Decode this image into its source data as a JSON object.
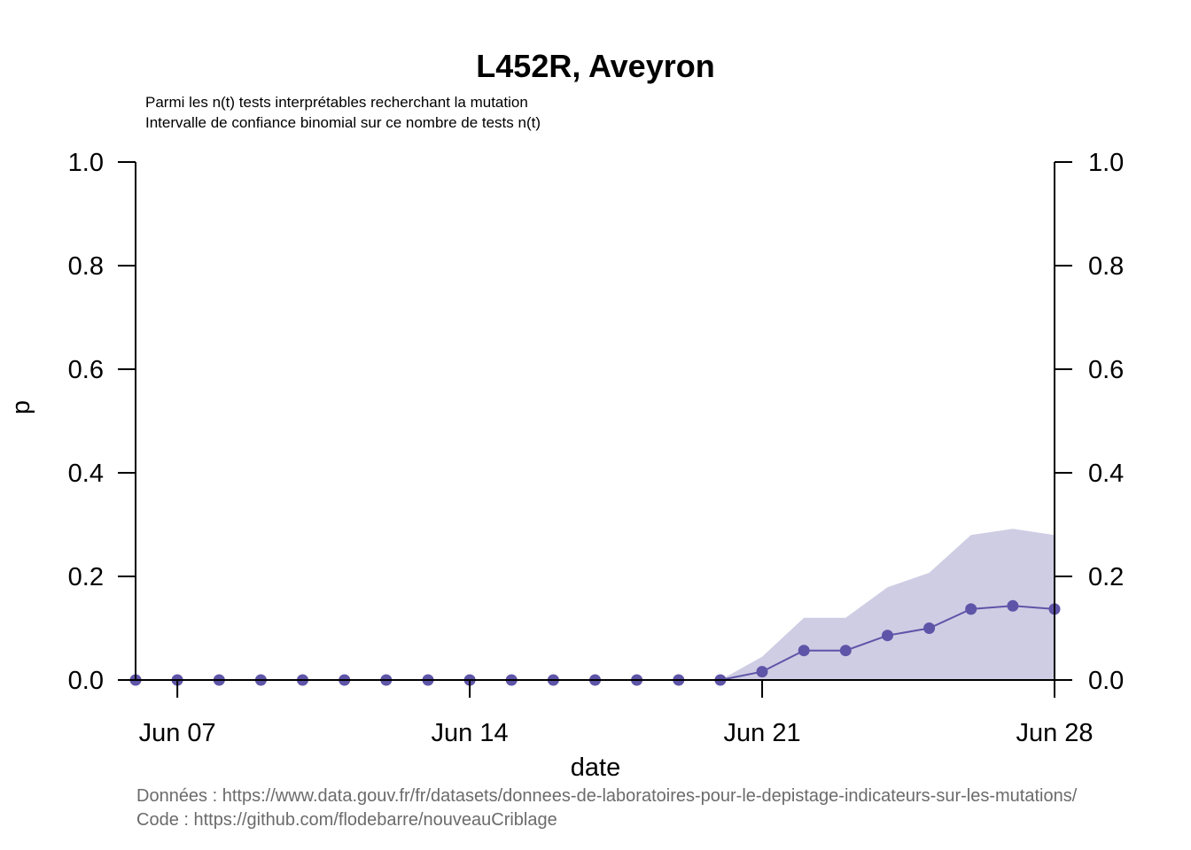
{
  "chart_data": {
    "type": "line",
    "title": "L452R, Aveyron",
    "subtitle_lines": [
      "Parmi les n(t) tests interprétables recherchant la mutation",
      "Intervalle de confiance binomial sur ce nombre de tests n(t)"
    ],
    "xlabel": "date",
    "ylabel": "p",
    "x_tick_labels": [
      "Jun 07",
      "Jun 14",
      "Jun 21",
      "Jun 28"
    ],
    "x_tick_days": [
      7,
      14,
      21,
      28
    ],
    "xlim": [
      6,
      28
    ],
    "ylim": [
      0,
      1
    ],
    "y_ticks": [
      "0.0",
      "0.2",
      "0.4",
      "0.6",
      "0.8",
      "1.0"
    ],
    "grid": false,
    "colors": {
      "line": "#5e55a8",
      "band": "#cfcde4"
    },
    "series": [
      {
        "x": [
          6,
          7,
          8,
          9,
          10,
          11,
          12,
          13,
          14,
          15,
          16,
          17,
          18,
          19,
          20,
          21,
          22,
          23,
          24,
          25,
          26,
          27,
          28
        ],
        "values": [
          0,
          0,
          0,
          0,
          0,
          0,
          0,
          0,
          0,
          0,
          0,
          0,
          0,
          0,
          0,
          0.016,
          0.057,
          0.057,
          0.086,
          0.1,
          0.137,
          0.143,
          0.137
        ],
        "lower": [
          0,
          0,
          0,
          0,
          0,
          0,
          0,
          0,
          0,
          0,
          0,
          0,
          0,
          0,
          0,
          0,
          0,
          0,
          0,
          0,
          0,
          0,
          0
        ],
        "upper": [
          0,
          0,
          0,
          0,
          0,
          0,
          0,
          0,
          0,
          0,
          0,
          0,
          0,
          0,
          0,
          0.045,
          0.12,
          0.12,
          0.179,
          0.207,
          0.28,
          0.292,
          0.28
        ]
      }
    ]
  },
  "source": {
    "data_line": "Données : https://www.data.gouv.fr/fr/datasets/donnees-de-laboratoires-pour-le-depistage-indicateurs-sur-les-mutations/",
    "code_line": "Code : https://github.com/flodebarre/nouveauCriblage"
  }
}
